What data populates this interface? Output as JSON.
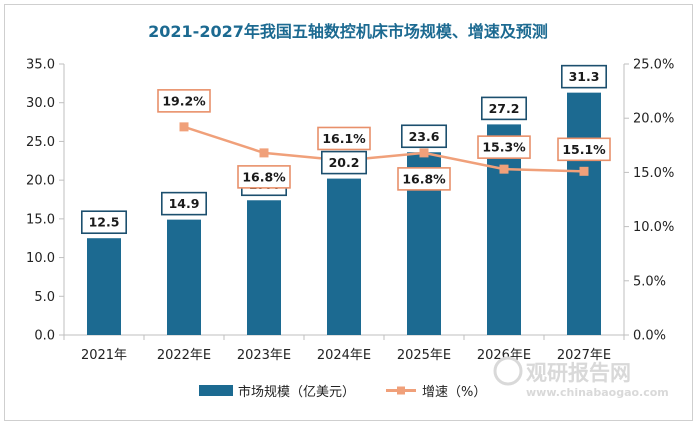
{
  "chart_data": {
    "type": "bar",
    "title": "2021-2027年我国五轴数控机床市场规模、增速及预测",
    "categories": [
      "2021年",
      "2022年E",
      "2023年E",
      "2024年E",
      "2025年E",
      "2026年E",
      "2027年E"
    ],
    "series": [
      {
        "name": "市场规模（亿美元）",
        "type": "bar",
        "axis": "left",
        "values": [
          12.5,
          14.9,
          17.4,
          20.2,
          23.6,
          27.2,
          31.3
        ],
        "labels": [
          "12.5",
          "14.9",
          "17.4",
          "20.2",
          "23.6",
          "27.2",
          "31.3"
        ],
        "color": "#1c6a91"
      },
      {
        "name": "增速（%）",
        "type": "line",
        "axis": "right",
        "values": [
          null,
          19.2,
          16.8,
          16.1,
          16.8,
          15.3,
          15.1
        ],
        "labels": [
          "",
          "19.2%",
          "16.8%",
          "16.1%",
          "16.8%",
          "15.3%",
          "15.1%"
        ],
        "color": "#f0a07a"
      }
    ],
    "y_left": {
      "lim": [
        0,
        35
      ],
      "ticks": [
        0,
        5,
        10,
        15,
        20,
        25,
        30,
        35
      ],
      "tick_labels": [
        "0.0",
        "5.0",
        "10.0",
        "15.0",
        "20.0",
        "25.0",
        "30.0",
        "35.0"
      ]
    },
    "y_right": {
      "lim": [
        0,
        25
      ],
      "ticks": [
        0,
        5,
        10,
        15,
        20,
        25
      ],
      "tick_labels": [
        "0.0%",
        "5.0%",
        "10.0%",
        "15.0%",
        "20.0%",
        "25.0%"
      ]
    },
    "grid": false,
    "legend_position": "bottom"
  },
  "watermark": {
    "name": "观研报告网",
    "url": "www.chinabaogao.com"
  },
  "colors": {
    "bar": "#1c6a91",
    "line": "#f0a07a",
    "title": "#1c6a91",
    "frame": "#cfcfcf"
  }
}
